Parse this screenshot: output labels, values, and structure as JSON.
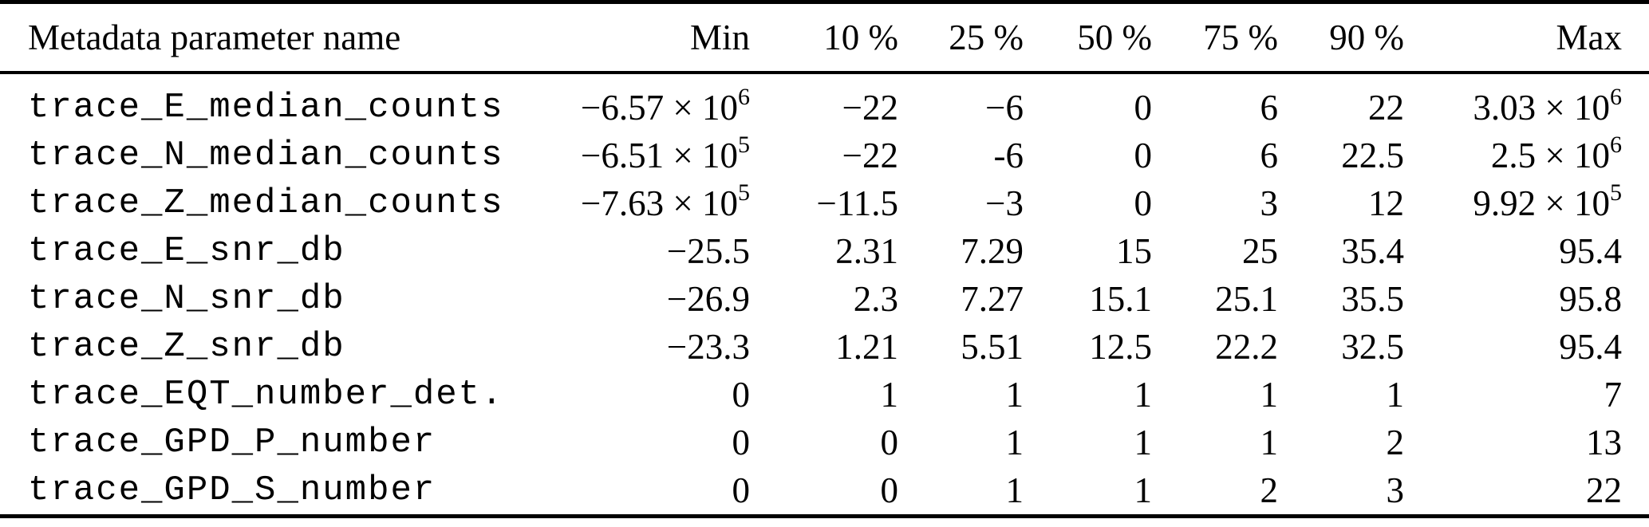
{
  "table": {
    "columns": {
      "name": "Metadata parameter name",
      "min": "Min",
      "p10": "10 %",
      "p25": "25 %",
      "p50": "50 %",
      "p75": "75 %",
      "p90": "90 %",
      "max": "Max"
    },
    "rows": [
      {
        "name": "trace_E_median_counts",
        "min": {
          "b": "−6.57 × 10",
          "e": "6"
        },
        "p10": {
          "b": "−22"
        },
        "p25": {
          "b": "−6"
        },
        "p50": {
          "b": "0"
        },
        "p75": {
          "b": "6"
        },
        "p90": {
          "b": "22"
        },
        "max": {
          "b": "3.03 × 10",
          "e": "6"
        }
      },
      {
        "name": "trace_N_median_counts",
        "min": {
          "b": "−6.51 × 10",
          "e": "5"
        },
        "p10": {
          "b": "−22"
        },
        "p25": {
          "b": "-6"
        },
        "p50": {
          "b": "0"
        },
        "p75": {
          "b": "6"
        },
        "p90": {
          "b": "22.5"
        },
        "max": {
          "b": "2.5 × 10",
          "e": "6"
        }
      },
      {
        "name": "trace_Z_median_counts",
        "min": {
          "b": "−7.63 × 10",
          "e": "5"
        },
        "p10": {
          "b": "−11.5"
        },
        "p25": {
          "b": "−3"
        },
        "p50": {
          "b": "0"
        },
        "p75": {
          "b": "3"
        },
        "p90": {
          "b": "12"
        },
        "max": {
          "b": "9.92 × 10",
          "e": "5"
        }
      },
      {
        "name": "trace_E_snr_db",
        "min": {
          "b": "−25.5"
        },
        "p10": {
          "b": "2.31"
        },
        "p25": {
          "b": "7.29"
        },
        "p50": {
          "b": "15"
        },
        "p75": {
          "b": "25"
        },
        "p90": {
          "b": "35.4"
        },
        "max": {
          "b": "95.4"
        }
      },
      {
        "name": "trace_N_snr_db",
        "min": {
          "b": "−26.9"
        },
        "p10": {
          "b": "2.3"
        },
        "p25": {
          "b": "7.27"
        },
        "p50": {
          "b": "15.1"
        },
        "p75": {
          "b": "25.1"
        },
        "p90": {
          "b": "35.5"
        },
        "max": {
          "b": "95.8"
        }
      },
      {
        "name": "trace_Z_snr_db",
        "min": {
          "b": "−23.3"
        },
        "p10": {
          "b": "1.21"
        },
        "p25": {
          "b": "5.51"
        },
        "p50": {
          "b": "12.5"
        },
        "p75": {
          "b": "22.2"
        },
        "p90": {
          "b": "32.5"
        },
        "max": {
          "b": "95.4"
        }
      },
      {
        "name": "trace_EQT_number_det.",
        "min": {
          "b": "0"
        },
        "p10": {
          "b": "1"
        },
        "p25": {
          "b": "1"
        },
        "p50": {
          "b": "1"
        },
        "p75": {
          "b": "1"
        },
        "p90": {
          "b": "1"
        },
        "max": {
          "b": "7"
        }
      },
      {
        "name": "trace_GPD_P_number",
        "min": {
          "b": "0"
        },
        "p10": {
          "b": "0"
        },
        "p25": {
          "b": "1"
        },
        "p50": {
          "b": "1"
        },
        "p75": {
          "b": "1"
        },
        "p90": {
          "b": "2"
        },
        "max": {
          "b": "13"
        }
      },
      {
        "name": "trace_GPD_S_number",
        "min": {
          "b": "0"
        },
        "p10": {
          "b": "0"
        },
        "p25": {
          "b": "1"
        },
        "p50": {
          "b": "1"
        },
        "p75": {
          "b": "2"
        },
        "p90": {
          "b": "3"
        },
        "max": {
          "b": "22"
        }
      }
    ]
  },
  "colors": {
    "text": "#000000",
    "background": "#ffffff",
    "rule": "#000000"
  }
}
